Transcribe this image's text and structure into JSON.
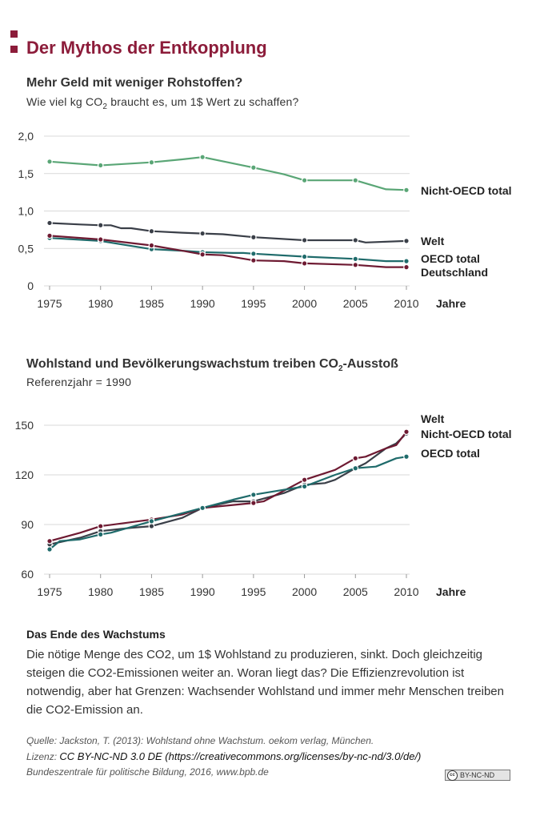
{
  "header": {
    "title": "Der Mythos der Entkopplung",
    "accent_color": "#8c1c3a"
  },
  "colors": {
    "green": "#5aa676",
    "dark": "#3a3f48",
    "teal": "#1f6b6b",
    "maroon": "#6e1a32"
  },
  "chart_data": [
    {
      "type": "line",
      "title": "Mehr Geld mit weniger Rohstoffen?",
      "subtitle_pre": "Wie viel kg CO",
      "subtitle_sub": "2",
      "subtitle_post": " braucht es, um 1$ Wert zu schaffen?",
      "xlabel": "Jahre",
      "ylabel": "",
      "x_ticks": [
        1975,
        1980,
        1985,
        1990,
        1995,
        2000,
        2005,
        2010
      ],
      "x_tick_labels": [
        "1975",
        "1980",
        "1985",
        "1990",
        "1995",
        "2000",
        "2005",
        "2010"
      ],
      "xlim": [
        1975,
        2010
      ],
      "y_ticks": [
        0,
        0.5,
        1.0,
        1.5,
        2.0
      ],
      "y_tick_labels": [
        "0",
        "0,5",
        "1,0",
        "1,5",
        "2,0"
      ],
      "ylim": [
        0,
        2.0
      ],
      "grid": "horizontal",
      "series": [
        {
          "name": "Nicht-OECD total",
          "color": "#5aa676",
          "points": [
            [
              1975,
              1.66
            ],
            [
              1980,
              1.61
            ],
            [
              1985,
              1.65
            ],
            [
              1988,
              1.69
            ],
            [
              1990,
              1.72
            ],
            [
              1995,
              1.58
            ],
            [
              1998,
              1.49
            ],
            [
              2000,
              1.41
            ],
            [
              2005,
              1.41
            ],
            [
              2008,
              1.29
            ],
            [
              2010,
              1.28
            ]
          ],
          "markers": [
            1975,
            1980,
            1985,
            1990,
            1995,
            2000,
            2005,
            2010
          ]
        },
        {
          "name": "Welt",
          "color": "#3a3f48",
          "points": [
            [
              1975,
              0.84
            ],
            [
              1978,
              0.82
            ],
            [
              1980,
              0.81
            ],
            [
              1981,
              0.81
            ],
            [
              1982,
              0.77
            ],
            [
              1983,
              0.77
            ],
            [
              1985,
              0.73
            ],
            [
              1988,
              0.71
            ],
            [
              1990,
              0.7
            ],
            [
              1992,
              0.69
            ],
            [
              1995,
              0.65
            ],
            [
              2000,
              0.61
            ],
            [
              2005,
              0.61
            ],
            [
              2006,
              0.58
            ],
            [
              2010,
              0.6
            ]
          ],
          "markers": [
            1975,
            1980,
            1985,
            1990,
            1995,
            2000,
            2005,
            2010
          ]
        },
        {
          "name": "OECD total",
          "color": "#1f6b6b",
          "points": [
            [
              1975,
              0.64
            ],
            [
              1980,
              0.6
            ],
            [
              1985,
              0.49
            ],
            [
              1988,
              0.47
            ],
            [
              1990,
              0.45
            ],
            [
              1993,
              0.44
            ],
            [
              1994,
              0.44
            ],
            [
              1995,
              0.43
            ],
            [
              2000,
              0.39
            ],
            [
              2005,
              0.36
            ],
            [
              2008,
              0.33
            ],
            [
              2010,
              0.33
            ]
          ],
          "markers": [
            1975,
            1980,
            1985,
            1990,
            1995,
            2000,
            2005,
            2010
          ]
        },
        {
          "name": "Deutschland",
          "color": "#6e1a32",
          "points": [
            [
              1975,
              0.67
            ],
            [
              1980,
              0.62
            ],
            [
              1985,
              0.54
            ],
            [
              1988,
              0.47
            ],
            [
              1990,
              0.42
            ],
            [
              1992,
              0.41
            ],
            [
              1995,
              0.34
            ],
            [
              1998,
              0.33
            ],
            [
              2000,
              0.3
            ],
            [
              2005,
              0.28
            ],
            [
              2008,
              0.25
            ],
            [
              2010,
              0.25
            ]
          ],
          "markers": [
            1975,
            1980,
            1985,
            1990,
            1995,
            2000,
            2005,
            2010
          ]
        }
      ]
    },
    {
      "type": "line",
      "title_pre": "Wohlstand und Bevölkerungswachstum treiben CO",
      "title_sub": "2",
      "title_post": "-Ausstoß",
      "subtitle": "Referenzjahr = 1990",
      "xlabel": "Jahre",
      "ylabel": "",
      "x_ticks": [
        1975,
        1980,
        1985,
        1990,
        1995,
        2000,
        2005,
        2010
      ],
      "x_tick_labels": [
        "1975",
        "1980",
        "1985",
        "1990",
        "1995",
        "2000",
        "2005",
        "2010"
      ],
      "xlim": [
        1975,
        2010
      ],
      "y_ticks": [
        60,
        90,
        120,
        150
      ],
      "y_tick_labels": [
        "60",
        "90",
        "120",
        "150"
      ],
      "ylim": [
        60,
        150
      ],
      "grid": "horizontal",
      "series": [
        {
          "name": "Welt",
          "color": "#3a3f48",
          "points": [
            [
              1975,
              78
            ],
            [
              1978,
              82
            ],
            [
              1980,
              86
            ],
            [
              1983,
              88
            ],
            [
              1985,
              89
            ],
            [
              1988,
              94
            ],
            [
              1990,
              100
            ],
            [
              1993,
              104
            ],
            [
              1995,
              104
            ],
            [
              1998,
              109
            ],
            [
              2000,
              114
            ],
            [
              2002,
              115
            ],
            [
              2003,
              117
            ],
            [
              2005,
              124
            ],
            [
              2006,
              127
            ],
            [
              2008,
              136
            ],
            [
              2009,
              139
            ],
            [
              2010,
              145
            ]
          ],
          "markers": [
            1975,
            1980,
            1985,
            1990,
            1995,
            2000,
            2005,
            2010
          ]
        },
        {
          "name": "Nicht-OECD total",
          "color": "#6e1a32",
          "points": [
            [
              1975,
              80
            ],
            [
              1978,
              85
            ],
            [
              1980,
              89
            ],
            [
              1985,
              93
            ],
            [
              1988,
              96
            ],
            [
              1990,
              100
            ],
            [
              1995,
              103
            ],
            [
              1996,
              104
            ],
            [
              2000,
              117
            ],
            [
              2002,
              121
            ],
            [
              2003,
              123
            ],
            [
              2005,
              130
            ],
            [
              2006,
              131
            ],
            [
              2008,
              136
            ],
            [
              2009,
              138
            ],
            [
              2010,
              146
            ]
          ],
          "markers": [
            1975,
            1980,
            1985,
            1990,
            1995,
            2000,
            2005,
            2010
          ]
        },
        {
          "name": "OECD total",
          "color": "#1f6b6b",
          "points": [
            [
              1975,
              75
            ],
            [
              1976,
              80
            ],
            [
              1978,
              81
            ],
            [
              1980,
              84
            ],
            [
              1981,
              85
            ],
            [
              1985,
              92
            ],
            [
              1990,
              100
            ],
            [
              1993,
              105
            ],
            [
              1995,
              108
            ],
            [
              1998,
              111
            ],
            [
              2000,
              113
            ],
            [
              2003,
              120
            ],
            [
              2005,
              124
            ],
            [
              2007,
              125
            ],
            [
              2009,
              130
            ],
            [
              2010,
              131
            ]
          ],
          "markers": [
            1975,
            1980,
            1985,
            1990,
            1995,
            2000,
            2005,
            2010
          ]
        }
      ]
    }
  ],
  "article": {
    "heading": "Das Ende des Wachstums",
    "body": "Die nötige Menge des CO2, um 1$ Wohlstand zu produzieren, sinkt. Doch gleichzeitig steigen die CO2-Emissionen weiter an. Woran liegt das? Die Effizienzrevolution ist notwendig, aber hat Grenzen: Wachsender Wohlstand und immer mehr Menschen treiben die CO2-Emission an."
  },
  "footer": {
    "source": "Quelle: Jackston, T. (2013): Wohlstand ohne Wachstum. oekom verlag, München.",
    "license_prefix": "Lizenz: ",
    "license_text": "CC BY-NC-ND 3.0 DE (https://creativecommons.org/licenses/by-nc-nd/3.0/de/)",
    "publisher": "Bundeszentrale für politische Bildung, 2016, www.bpb.de",
    "badge_circle": "cc",
    "badge_text": "BY-NC-ND",
    "badge_icon": "cc-license-icon"
  }
}
